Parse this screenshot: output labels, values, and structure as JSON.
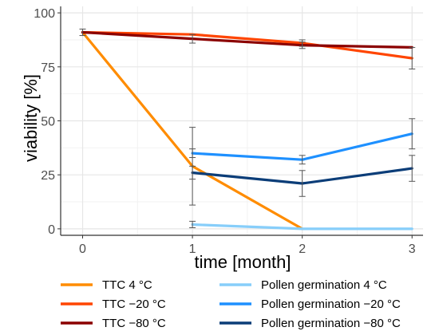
{
  "chart_data": {
    "type": "line",
    "xlabel": "time [month]",
    "ylabel": "viability [%]",
    "x": [
      0,
      1,
      2,
      3
    ],
    "xlim": [
      -0.2,
      3.1
    ],
    "ylim": [
      -3,
      103
    ],
    "x_ticks": [
      "0",
      "1",
      "2",
      "3"
    ],
    "y_ticks": [
      "0",
      "25",
      "50",
      "75",
      "100"
    ],
    "grid": true,
    "legend_position": "bottom",
    "series": [
      {
        "name": "TTC 4 °C",
        "color": "#ff8c00",
        "x": [
          0,
          1,
          2
        ],
        "values": [
          91,
          29,
          0
        ],
        "err": [
          null,
          18,
          null
        ]
      },
      {
        "name": "TTC −20 °C",
        "color": "#ff4500",
        "x": [
          0,
          1,
          2,
          3
        ],
        "values": [
          91,
          90,
          86,
          79
        ],
        "err": [
          null,
          null,
          1.5,
          5
        ]
      },
      {
        "name": "TTC −80 °C",
        "color": "#8b0000",
        "x": [
          0,
          1,
          2,
          3
        ],
        "values": [
          91,
          88,
          85,
          84
        ],
        "err": [
          1.5,
          2,
          1.5,
          null
        ]
      },
      {
        "name": "Pollen germination 4 °C",
        "color": "#87cefa",
        "x": [
          1,
          2,
          3
        ],
        "values": [
          2,
          0,
          0
        ],
        "err": [
          1.5,
          null,
          null
        ]
      },
      {
        "name": "Pollen germination −20 °C",
        "color": "#1e90ff",
        "x": [
          1,
          2,
          3
        ],
        "values": [
          35,
          32,
          44
        ],
        "err": [
          2,
          2,
          7
        ]
      },
      {
        "name": "Pollen germination −80 °C",
        "color": "#0b3d78",
        "x": [
          1,
          2,
          3
        ],
        "values": [
          26,
          21,
          28
        ],
        "err": [
          3,
          6,
          6
        ]
      }
    ]
  }
}
